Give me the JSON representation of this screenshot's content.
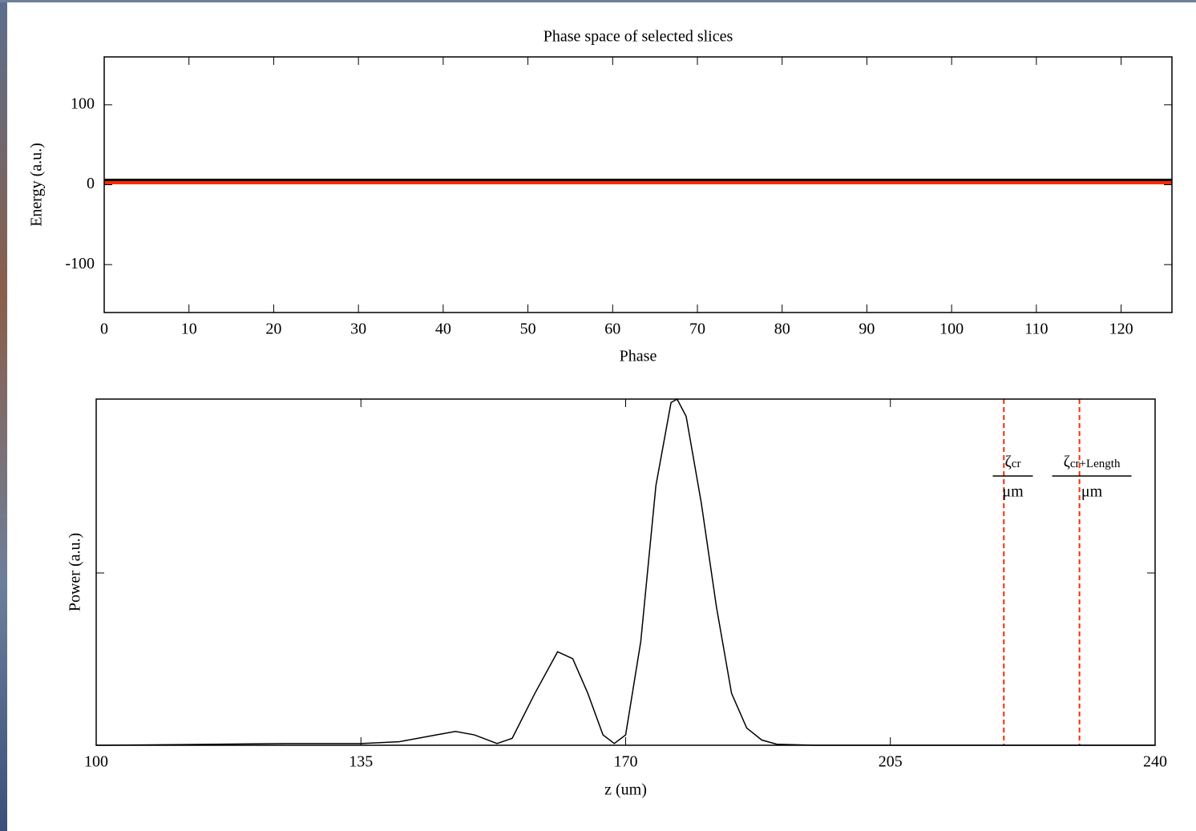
{
  "chart_data": [
    {
      "type": "line",
      "title": "Phase space of selected slices",
      "xlabel": "Phase",
      "ylabel": "Energy (a.u.)",
      "x": [
        0,
        126
      ],
      "series": [
        {
          "color": "#ff2a00",
          "values": [
            3,
            3
          ]
        },
        {
          "color": "#000000",
          "values": [
            6,
            6
          ]
        }
      ],
      "xlim": [
        0,
        126
      ],
      "xticks": [
        0,
        10,
        20,
        30,
        40,
        50,
        60,
        70,
        80,
        90,
        100,
        110,
        120
      ],
      "ylim": [
        -160,
        160
      ],
      "yticks": [
        -100,
        0,
        100
      ]
    },
    {
      "type": "line",
      "xlabel": "z (um)",
      "ylabel": "Power (a.u.)",
      "x": [
        100,
        112,
        125,
        135,
        140,
        145,
        147.5,
        150,
        153,
        155,
        158,
        161,
        163,
        165,
        167,
        168.5,
        170,
        172,
        174,
        176,
        176.8,
        178,
        180,
        182,
        184,
        186,
        188,
        190,
        195,
        240
      ],
      "series": [
        {
          "color": "#000000",
          "values": [
            0,
            0.002,
            0.005,
            0.005,
            0.01,
            0.03,
            0.04,
            0.03,
            0.005,
            0.02,
            0.15,
            0.27,
            0.25,
            0.15,
            0.03,
            0.005,
            0.03,
            0.3,
            0.75,
            0.99,
            1.0,
            0.95,
            0.7,
            0.4,
            0.15,
            0.05,
            0.015,
            0.003,
            0,
            0
          ]
        }
      ],
      "xlim": [
        100,
        240
      ],
      "xticks": [
        100,
        135,
        170,
        205,
        240
      ],
      "ylim": [
        0,
        1
      ],
      "vlines": [
        {
          "x": 220,
          "color": "#ff2a00",
          "label": "ζ",
          "subscript": "cr",
          "unit": "μm"
        },
        {
          "x": 230,
          "color": "#ff2a00",
          "label": "ζ",
          "subscript": "cr+Length",
          "unit": "μm"
        }
      ]
    }
  ]
}
